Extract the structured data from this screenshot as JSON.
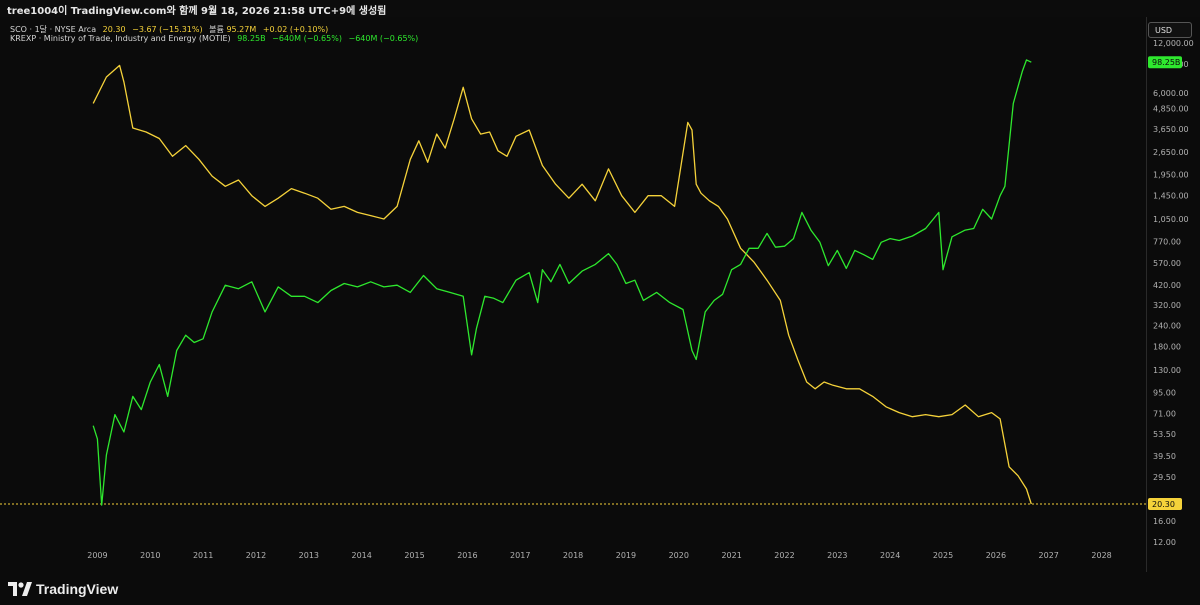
{
  "header": {
    "caption": "tree1004이 TradingView.com와 함께 9월 18, 2026 21:58 UTC+9에 생성됨"
  },
  "legend": {
    "sco": {
      "symbol": "SCO · 1달 · NYSE Arca",
      "price": "20.30",
      "change": "−3.67 (−15.31%)",
      "volume_label": "볼륨",
      "volume": "95.27M",
      "volume_change": "+0.02 (+0.10%)"
    },
    "krexp": {
      "symbol": "KREXP · Ministry of Trade, Industry and Energy (MOTIE)",
      "value": "98.25B",
      "change1": "−640M (−0.65%)",
      "change2": "−640M (−0.65%)"
    }
  },
  "currency_button": "USD",
  "footer": {
    "brand": "TradingView"
  },
  "colors": {
    "sco": "#f5d23a",
    "krexp": "#2ee82e",
    "background": "#0c0c0c",
    "axis_text": "#b2b2b2"
  },
  "chart_data": {
    "type": "line",
    "scale": "log",
    "ylim": [
      12,
      12000
    ],
    "xlim": [
      "2008-09",
      "2028-06"
    ],
    "x_tick_labels": [
      "2009",
      "2010",
      "2011",
      "2012",
      "2013",
      "2014",
      "2015",
      "2016",
      "2017",
      "2018",
      "2019",
      "2020",
      "2021",
      "2022",
      "2023",
      "2024",
      "2025",
      "2026",
      "2027",
      "2028"
    ],
    "y_tick_labels": [
      "12,000.00",
      "9,000.00",
      "6,000.00",
      "4,850.00",
      "3,650.00",
      "2,650.00",
      "1,950.00",
      "1,450.00",
      "1,050.00",
      "770.00",
      "570.00",
      "420.00",
      "320.00",
      "240.00",
      "180.00",
      "130.00",
      "95.00",
      "71.00",
      "53.50",
      "39.50",
      "29.50",
      "20.30",
      "16.00",
      "12.00"
    ],
    "current_labels": {
      "krexp": "98.25B",
      "sco": "20.30"
    },
    "series": [
      {
        "name": "SCO",
        "color": "#f5d23a",
        "x": [
          2008.92,
          2009.17,
          2009.42,
          2009.5,
          2009.67,
          2009.92,
          2010.17,
          2010.42,
          2010.67,
          2010.92,
          2011.17,
          2011.42,
          2011.67,
          2011.92,
          2012.17,
          2012.42,
          2012.67,
          2012.92,
          2013.17,
          2013.42,
          2013.67,
          2013.92,
          2014.17,
          2014.42,
          2014.67,
          2014.92,
          2015.08,
          2015.25,
          2015.42,
          2015.58,
          2015.75,
          2015.92,
          2016.08,
          2016.25,
          2016.42,
          2016.58,
          2016.75,
          2016.92,
          2017.17,
          2017.42,
          2017.67,
          2017.92,
          2018.17,
          2018.42,
          2018.67,
          2018.92,
          2019.17,
          2019.42,
          2019.67,
          2019.92,
          2020.17,
          2020.25,
          2020.33,
          2020.42,
          2020.58,
          2020.75,
          2020.92,
          2021.17,
          2021.42,
          2021.67,
          2021.92,
          2022.08,
          2022.25,
          2022.42,
          2022.58,
          2022.75,
          2022.92,
          2023.17,
          2023.42,
          2023.67,
          2023.92,
          2024.17,
          2024.42,
          2024.67,
          2024.92,
          2025.17,
          2025.42,
          2025.67,
          2025.92,
          2026.08,
          2026.25,
          2026.42,
          2026.58,
          2026.67
        ],
        "values": [
          5200,
          7500,
          8800,
          7000,
          3700,
          3500,
          3200,
          2500,
          2900,
          2400,
          1900,
          1650,
          1800,
          1450,
          1250,
          1400,
          1600,
          1500,
          1400,
          1200,
          1250,
          1150,
          1100,
          1050,
          1250,
          2400,
          3100,
          2300,
          3400,
          2800,
          4200,
          6500,
          4200,
          3400,
          3500,
          2700,
          2500,
          3300,
          3600,
          2200,
          1700,
          1400,
          1700,
          1350,
          2100,
          1450,
          1150,
          1450,
          1450,
          1250,
          4000,
          3600,
          1700,
          1500,
          1350,
          1250,
          1050,
          700,
          580,
          450,
          340,
          210,
          150,
          110,
          100,
          110,
          105,
          100,
          100,
          90,
          78,
          72,
          68,
          70,
          68,
          70,
          80,
          68,
          72,
          66,
          34,
          30,
          25,
          20.3
        ]
      },
      {
        "name": "KREXP",
        "color": "#2ee82e",
        "x": [
          2008.92,
          2009.0,
          2009.08,
          2009.17,
          2009.33,
          2009.5,
          2009.67,
          2009.83,
          2010.0,
          2010.17,
          2010.33,
          2010.5,
          2010.67,
          2010.83,
          2011.0,
          2011.17,
          2011.42,
          2011.67,
          2011.92,
          2012.17,
          2012.42,
          2012.67,
          2012.92,
          2013.17,
          2013.42,
          2013.67,
          2013.92,
          2014.17,
          2014.42,
          2014.67,
          2014.92,
          2015.17,
          2015.42,
          2015.67,
          2015.92,
          2016.08,
          2016.17,
          2016.33,
          2016.5,
          2016.67,
          2016.92,
          2017.17,
          2017.33,
          2017.42,
          2017.58,
          2017.75,
          2017.92,
          2018.17,
          2018.42,
          2018.67,
          2018.83,
          2019.0,
          2019.17,
          2019.33,
          2019.58,
          2019.83,
          2020.08,
          2020.25,
          2020.33,
          2020.5,
          2020.67,
          2020.83,
          2021.0,
          2021.17,
          2021.33,
          2021.5,
          2021.67,
          2021.83,
          2022.0,
          2022.17,
          2022.33,
          2022.5,
          2022.67,
          2022.83,
          2023.0,
          2023.17,
          2023.33,
          2023.5,
          2023.67,
          2023.83,
          2024.0,
          2024.17,
          2024.42,
          2024.67,
          2024.92,
          2025.0,
          2025.17,
          2025.42,
          2025.58,
          2025.75,
          2025.92,
          2026.08,
          2026.17,
          2026.33,
          2026.5,
          2026.58,
          2026.67
        ],
        "values": [
          60,
          50,
          20,
          40,
          70,
          55,
          90,
          75,
          110,
          140,
          90,
          170,
          210,
          190,
          200,
          290,
          420,
          400,
          440,
          290,
          410,
          360,
          360,
          330,
          390,
          430,
          410,
          440,
          410,
          420,
          380,
          480,
          400,
          380,
          360,
          160,
          230,
          360,
          350,
          330,
          450,
          500,
          330,
          520,
          440,
          560,
          430,
          510,
          560,
          650,
          560,
          430,
          450,
          340,
          380,
          330,
          300,
          170,
          150,
          290,
          340,
          370,
          520,
          560,
          700,
          700,
          860,
          710,
          720,
          800,
          1150,
          900,
          760,
          550,
          680,
          530,
          680,
          640,
          600,
          760,
          800,
          780,
          830,
          920,
          1150,
          520,
          820,
          900,
          920,
          1200,
          1050,
          1450,
          1650,
          5200,
          8100,
          9500,
          9200
        ]
      }
    ]
  }
}
